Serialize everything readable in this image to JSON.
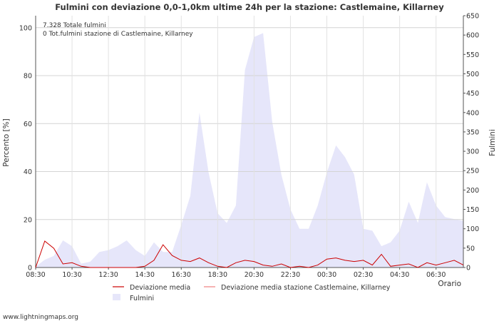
{
  "watermark": "www.lightningmaps.org",
  "chart_data": {
    "type": "area",
    "title": "Fulmini con deviazione 0,0-1,0km ultime 24h per la stazione: Castlemaine, Killarney",
    "xlabel": "Orario",
    "ylabel": "Percento   [%]",
    "y2label": "Fulmini",
    "ylim": [
      0,
      105
    ],
    "y2lim": [
      0,
      650
    ],
    "yticks": [
      0,
      20,
      40,
      60,
      80,
      100
    ],
    "y2ticks": [
      0,
      50,
      100,
      150,
      200,
      250,
      300,
      350,
      400,
      450,
      500,
      550,
      600,
      650
    ],
    "xlim": [
      0,
      23.5
    ],
    "x_tick_labels": [
      "08:30",
      "10:30",
      "12:30",
      "14:30",
      "16:30",
      "18:30",
      "20:30",
      "22:30",
      "00:30",
      "02:30",
      "04:30",
      "06:30"
    ],
    "x_tick_hours": [
      0,
      2,
      4,
      6,
      8,
      10,
      12,
      14,
      16,
      18,
      20,
      22
    ],
    "grid": true,
    "annotations": [
      "7.328 Totale fulmini",
      "0 Tot.fulmini stazione di Castlemaine, Killarney"
    ],
    "legend": [
      {
        "label": "Deviazione media",
        "style": "line",
        "color": "#cc0000"
      },
      {
        "label": "Deviazione media stazione Castlemaine, Killarney",
        "style": "line",
        "color": "#f08080"
      },
      {
        "label": "Fulmini",
        "style": "area",
        "color": "#e6e6fa"
      }
    ],
    "series": [
      {
        "name": "Fulmini",
        "axis": "right",
        "x": [
          0,
          0.5,
          1,
          1.5,
          2,
          2.5,
          3,
          3.5,
          4,
          4.5,
          5,
          5.5,
          6,
          6.5,
          7,
          7.5,
          8,
          8.5,
          9,
          9.5,
          10,
          10.5,
          11,
          11.5,
          12,
          12.5,
          13,
          13.5,
          14,
          14.5,
          15,
          15.5,
          16,
          16.5,
          17,
          17.5,
          18,
          18.5,
          19,
          19.5,
          20,
          20.5,
          21,
          21.5,
          22,
          22.5,
          23,
          23.5
        ],
        "values": [
          2,
          20,
          30,
          70,
          55,
          10,
          15,
          40,
          45,
          55,
          70,
          45,
          30,
          65,
          40,
          40,
          110,
          185,
          400,
          245,
          140,
          115,
          160,
          510,
          595,
          605,
          375,
          240,
          150,
          100,
          100,
          160,
          245,
          315,
          285,
          240,
          100,
          95,
          55,
          65,
          95,
          170,
          115,
          220,
          160,
          130,
          125,
          120
        ]
      },
      {
        "name": "Deviazione media",
        "axis": "left",
        "x": [
          0,
          0.5,
          1,
          1.5,
          2,
          2.5,
          3,
          3.5,
          4,
          4.5,
          5,
          5.5,
          6,
          6.5,
          7,
          7.5,
          8,
          8.5,
          9,
          9.5,
          10,
          10.5,
          11,
          11.5,
          12,
          12.5,
          13,
          13.5,
          14,
          14.5,
          15,
          15.5,
          16,
          16.5,
          17,
          17.5,
          18,
          18.5,
          19,
          19.5,
          20,
          20.5,
          21,
          21.5,
          22,
          22.5,
          23,
          23.5
        ],
        "values": [
          0,
          11,
          8,
          1.5,
          2,
          0.5,
          0,
          0,
          0,
          0,
          0,
          0,
          0.5,
          3,
          9.5,
          5,
          3,
          2.5,
          4,
          2,
          0.5,
          0,
          2,
          3,
          2.5,
          1,
          0.5,
          1.5,
          0,
          0.5,
          0,
          1,
          3.5,
          4,
          3,
          2.5,
          3,
          1,
          5.5,
          0.5,
          1,
          1.5,
          0,
          2,
          1,
          2,
          3,
          1
        ]
      }
    ]
  }
}
